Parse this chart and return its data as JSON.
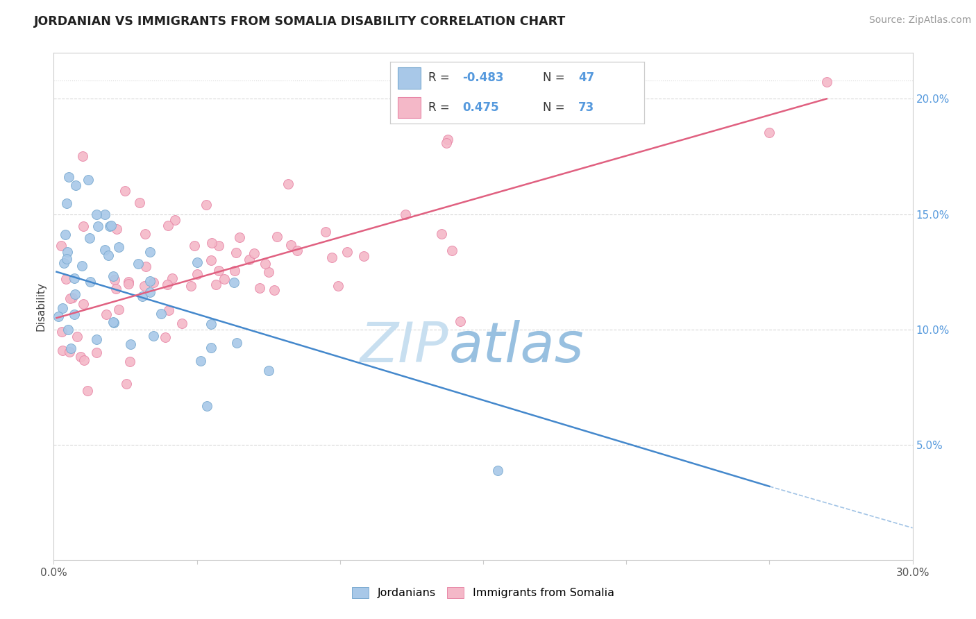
{
  "title": "JORDANIAN VS IMMIGRANTS FROM SOMALIA DISABILITY CORRELATION CHART",
  "source": "Source: ZipAtlas.com",
  "ylabel": "Disability",
  "blue_R": -0.483,
  "blue_N": 47,
  "pink_R": 0.475,
  "pink_N": 73,
  "blue_label": "Jordanians",
  "pink_label": "Immigrants from Somalia",
  "blue_color": "#a8c8e8",
  "pink_color": "#f4b8c8",
  "blue_edge_color": "#7aaad0",
  "pink_edge_color": "#e888a8",
  "blue_line_color": "#4488cc",
  "pink_line_color": "#e06080",
  "watermark_zip": "#c8dff0",
  "watermark_atlas": "#98c0e0",
  "grid_color": "#d8d8d8",
  "right_axis_color": "#5599dd",
  "title_color": "#222222",
  "source_color": "#999999",
  "xlim": [
    0,
    30
  ],
  "ylim": [
    0,
    22
  ],
  "ytick_vals": [
    5,
    10,
    15,
    20
  ],
  "ytick_labels": [
    "5.0%",
    "10.0%",
    "15.0%",
    "20.0%"
  ],
  "blue_line_start_x": 0.1,
  "blue_line_end_x": 25,
  "blue_line_start_y": 12.5,
  "blue_line_end_y": 3.2,
  "blue_dash_start_x": 25,
  "blue_dash_end_x": 30,
  "blue_dash_start_y": 3.2,
  "blue_dash_end_y": 1.4,
  "pink_line_start_x": 0.1,
  "pink_line_end_x": 27,
  "pink_line_start_y": 10.5,
  "pink_line_end_y": 20.0
}
